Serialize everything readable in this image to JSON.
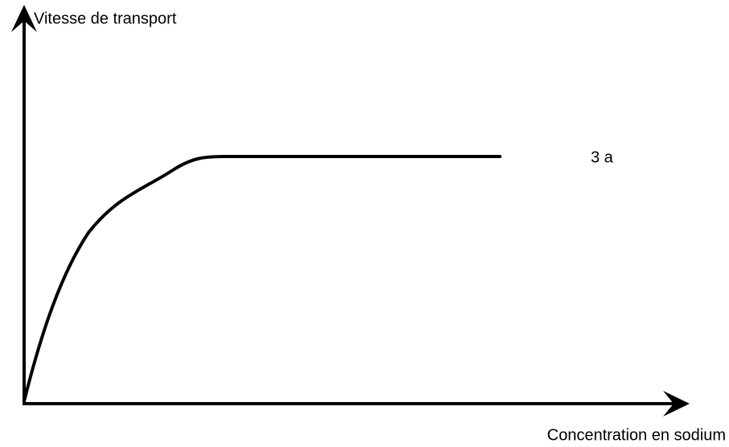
{
  "y_axis_label": "Vitesse de transport",
  "x_axis_label": "Concentration en sodium",
  "curve_label": "3 a"
}
